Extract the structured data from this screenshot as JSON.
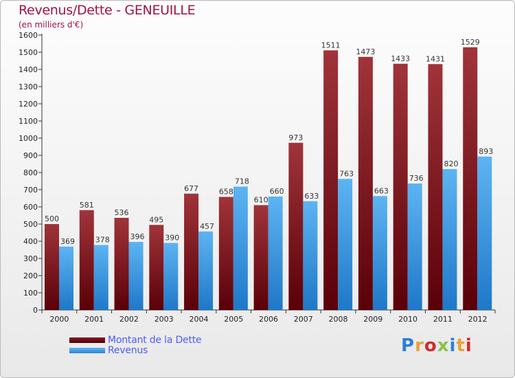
{
  "chart_data": {
    "type": "bar",
    "title": "Revenus/Dette - GENEUILLE",
    "subtitle": "(en milliers d'€)",
    "categories": [
      "2000",
      "2001",
      "2002",
      "2003",
      "2004",
      "2005",
      "2006",
      "2007",
      "2008",
      "2009",
      "2010",
      "2011",
      "2012"
    ],
    "series": [
      {
        "name": "Montant de la Dette",
        "color": "#7a0f17",
        "values": [
          500,
          581,
          536,
          495,
          677,
          658,
          610,
          973,
          1511,
          1473,
          1433,
          1431,
          1529
        ]
      },
      {
        "name": "Revenus",
        "color": "#3b9be8",
        "values": [
          369,
          378,
          396,
          390,
          457,
          718,
          660,
          633,
          763,
          663,
          736,
          820,
          893
        ]
      }
    ],
    "ylim": [
      0,
      1600
    ],
    "yticks": [
      0,
      100,
      200,
      300,
      400,
      500,
      600,
      700,
      800,
      900,
      1000,
      1100,
      1200,
      1300,
      1400,
      1500,
      1600
    ],
    "grid": false,
    "legend_position": "bottom-left"
  },
  "logo": {
    "text": "Proxiti",
    "letter_colors": [
      "#2a7fd8",
      "#e8a23a",
      "#d42a2a",
      "#8bc34a",
      "#2a7fd8",
      "#e8a23a",
      "#d42a2a"
    ]
  }
}
